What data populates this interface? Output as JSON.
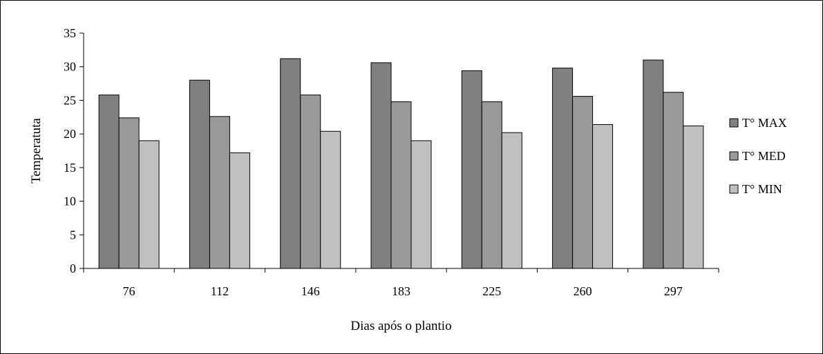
{
  "chart_data": {
    "type": "bar",
    "title": "",
    "xlabel": "Dias após o plantio",
    "ylabel": "Temperatuta",
    "categories": [
      "76",
      "112",
      "146",
      "183",
      "225",
      "260",
      "297"
    ],
    "series": [
      {
        "name": "T° MAX",
        "color": "#808080",
        "values": [
          25.8,
          28.0,
          31.2,
          30.6,
          29.4,
          29.8,
          31.0
        ]
      },
      {
        "name": "T° MED",
        "color": "#999999",
        "values": [
          22.4,
          22.6,
          25.8,
          24.8,
          24.8,
          25.6,
          26.2
        ]
      },
      {
        "name": "T° MIN",
        "color": "#c0c0c0",
        "values": [
          19.0,
          17.2,
          20.4,
          19.0,
          20.2,
          21.4,
          21.2
        ]
      }
    ],
    "ylim": [
      0,
      35
    ],
    "yticks": [
      "0",
      "5",
      "10",
      "15",
      "20",
      "25",
      "30",
      "35"
    ],
    "grid": false,
    "legend_position": "right"
  }
}
